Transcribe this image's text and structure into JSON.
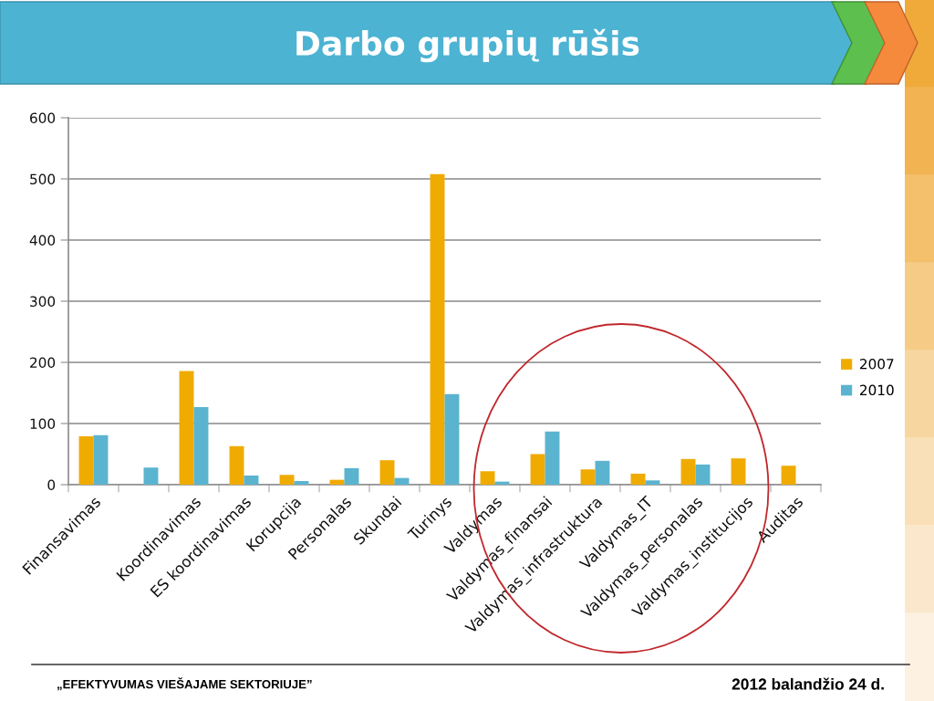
{
  "chart_data": {
    "type": "bar",
    "title": "Darbo grupių rūšis",
    "categories": [
      "Finansavimas",
      null,
      "Koordinavimas",
      "ES koordinavimas",
      "Korupcija",
      "Personalas",
      "Skundai",
      "Turinys",
      "Valdymas",
      "Valdymas_finansai",
      "Valdymas_infrastruktura",
      "Valdymas_IT",
      "Valdymas_personalas",
      "Valdymas_institucijos",
      "Auditas"
    ],
    "series": [
      {
        "name": "2007",
        "color": "#f0ab00",
        "values": [
          79,
          null,
          186,
          63,
          16,
          8,
          40,
          508,
          22,
          50,
          25,
          18,
          42,
          43,
          31
        ]
      },
      {
        "name": "2010",
        "color": "#5bb4cf",
        "values": [
          81,
          28,
          127,
          15,
          6,
          27,
          11,
          148,
          5,
          87,
          39,
          7,
          33,
          null,
          null
        ]
      }
    ],
    "ylim": [
      0,
      600
    ],
    "yticks": [
      0,
      100,
      200,
      300,
      400,
      500,
      600
    ],
    "grid": "y",
    "legend": "right",
    "annotations": [
      "„EFEKTYVUMAS VIEŠAJAME SEKTORIUJE”",
      "2012 balandžio 24 d."
    ]
  }
}
